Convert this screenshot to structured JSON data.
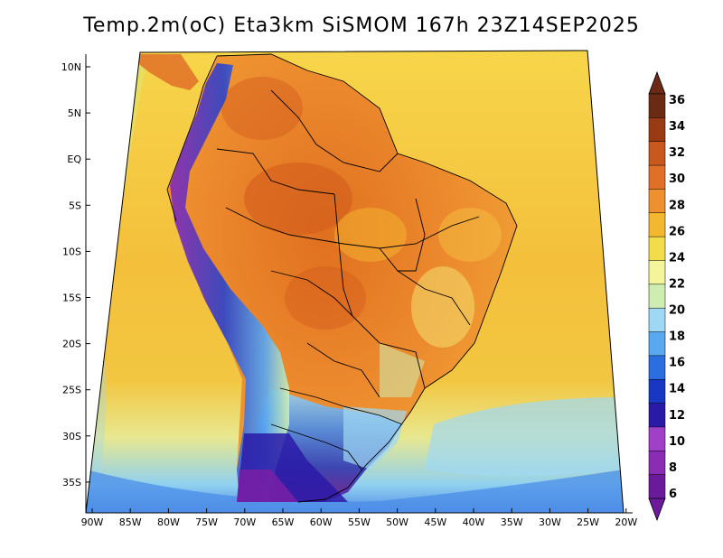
{
  "title": "Temp.2m(oC) Eta3km SiSMOM 167h 23Z14SEP2025",
  "colors": {
    "ocean_warm": "#f6c23e",
    "ocean_mid": "#f2d84e",
    "land_hot": "#ec8a2e",
    "land_very_hot": "#d9641f",
    "andes_cold": "#2f45c8",
    "andes_very_cold": "#7a1fa6"
  },
  "map": {
    "lat_labels": [
      "10N",
      "5N",
      "EQ",
      "5S",
      "10S",
      "15S",
      "20S",
      "25S",
      "30S",
      "35S"
    ],
    "lon_labels": [
      "90W",
      "85W",
      "80W",
      "75W",
      "70W",
      "65W",
      "60W",
      "55W",
      "50W",
      "45W",
      "40W",
      "35W",
      "30W",
      "25W",
      "20W"
    ]
  },
  "colorbar": {
    "labels": [
      "6",
      "8",
      "10",
      "12",
      "14",
      "16",
      "18",
      "20",
      "22",
      "24",
      "26",
      "28",
      "30",
      "32",
      "34",
      "36"
    ],
    "colors": [
      "#6a1a9a",
      "#8a2cb4",
      "#a040c8",
      "#2a1aa8",
      "#1838c4",
      "#2a6ee0",
      "#5aa8f0",
      "#9fd8f4",
      "#cdeeb0",
      "#f4f49a",
      "#f2dc4a",
      "#f4b830",
      "#ee9030",
      "#e07028",
      "#c8581e",
      "#9a3a14",
      "#6a2a14"
    ]
  }
}
